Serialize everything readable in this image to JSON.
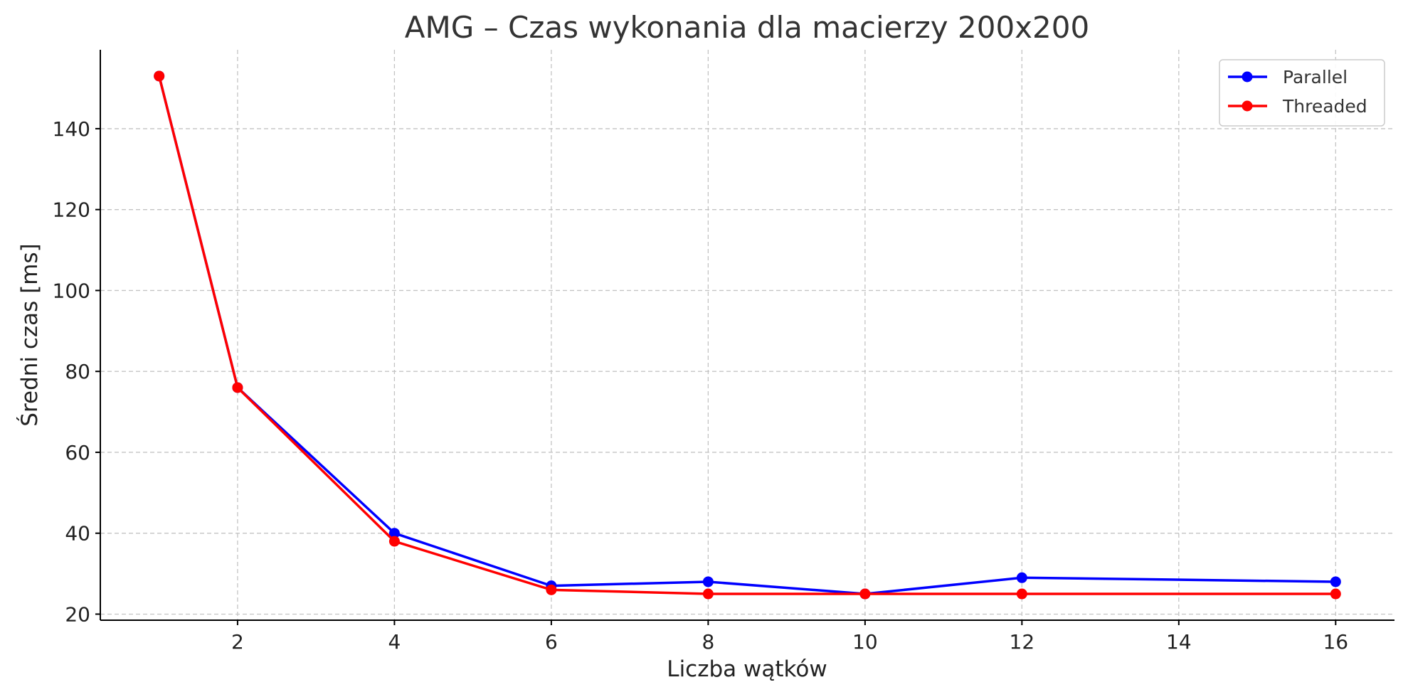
{
  "chart_data": {
    "type": "line",
    "title": "AMG – Czas wykonania dla macierzy 200x200",
    "xlabel": "Liczba wątków",
    "ylabel": "Średni czas [ms]",
    "x": [
      1,
      2,
      4,
      6,
      8,
      10,
      12,
      16
    ],
    "xlim": [
      0.25,
      16.75
    ],
    "ylim": [
      18.5,
      159.5
    ],
    "xticks": [
      2,
      4,
      6,
      8,
      10,
      12,
      14,
      16
    ],
    "yticks": [
      20,
      40,
      60,
      80,
      100,
      120,
      140
    ],
    "grid": true,
    "legend_position": "top-right",
    "series": [
      {
        "name": "Parallel",
        "color": "#0000ff",
        "values": [
          153,
          76,
          40,
          27,
          28,
          25,
          29,
          28
        ]
      },
      {
        "name": "Threaded",
        "color": "#ff0000",
        "values": [
          153,
          76,
          38,
          26,
          25,
          25,
          25,
          25
        ]
      }
    ]
  }
}
